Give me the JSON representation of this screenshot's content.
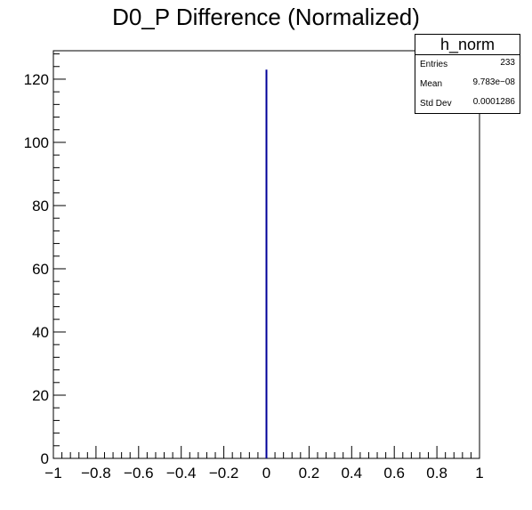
{
  "chart_data": {
    "type": "bar",
    "title": "D0_P Difference (Normalized)",
    "xlabel": "",
    "ylabel": "",
    "xlim": [
      -1,
      1
    ],
    "ylim": [
      0,
      129
    ],
    "x_ticks": [
      "−1",
      "−0.8",
      "−0.6",
      "−0.4",
      "−0.2",
      "0",
      "0.2",
      "0.4",
      "0.6",
      "0.8",
      "1"
    ],
    "y_ticks": [
      "0",
      "20",
      "40",
      "60",
      "80",
      "100",
      "120"
    ],
    "bins": [
      {
        "x": 0,
        "value": 123
      }
    ],
    "line_color": "#000099",
    "grid": false
  },
  "stats": {
    "name": "h_norm",
    "rows": [
      {
        "label": "Entries",
        "value": "233"
      },
      {
        "label": "Mean",
        "value": "9.783e−08"
      },
      {
        "label": "Std Dev",
        "value": "0.0001286"
      }
    ]
  }
}
